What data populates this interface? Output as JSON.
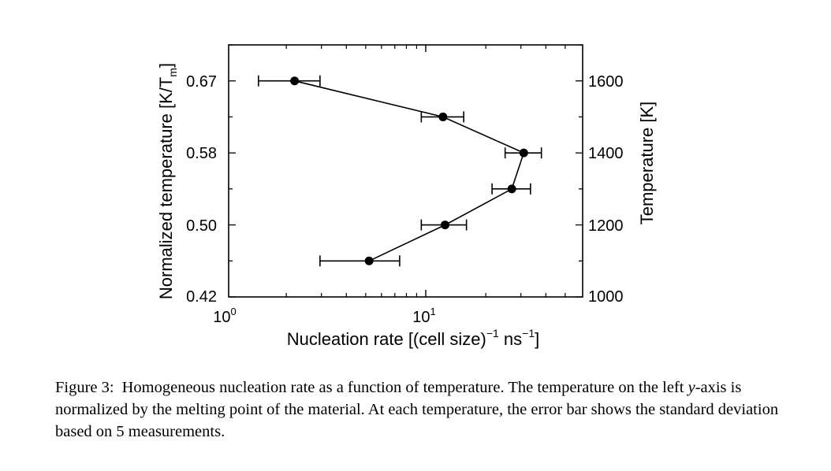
{
  "chart_data": {
    "type": "scatter",
    "xlabel": "Nucleation rate [(cell size)",
    "xlabel_sup1": "−1",
    "xlabel_mid": " ns",
    "xlabel_sup2": "−1",
    "xlabel_end": "]",
    "x_scale": "log",
    "xlim": [
      1,
      55
    ],
    "x_tick_labels": [
      {
        "base": "10",
        "exp": "0",
        "value": 1
      },
      {
        "base": "10",
        "exp": "1",
        "value": 10
      }
    ],
    "ylabel_left": "Normalized temperature [K/T",
    "ylabel_left_sub": "m",
    "ylabel_left_end": "]",
    "ylim_left": [
      0.42,
      0.7
    ],
    "y_left_ticks": [
      "0.42",
      "0.50",
      "0.58",
      "0.67"
    ],
    "ylabel_right": "Temperature [K]",
    "ylim_right": [
      1000,
      1700
    ],
    "y_right_ticks": [
      "1000",
      "1200",
      "1400",
      "1600"
    ],
    "series": [
      {
        "points": [
          {
            "temperature": 1600,
            "rate": 2.2,
            "err_low": 1.45,
            "err_high": 2.95
          },
          {
            "temperature": 1500,
            "rate": 12.2,
            "err_low": 9.5,
            "err_high": 15.5
          },
          {
            "temperature": 1400,
            "rate": 31.0,
            "err_low": 25.0,
            "err_high": 38.0
          },
          {
            "temperature": 1300,
            "rate": 27.0,
            "err_low": 21.5,
            "err_high": 33.5
          },
          {
            "temperature": 1200,
            "rate": 12.5,
            "err_low": 9.5,
            "err_high": 16.0
          },
          {
            "temperature": 1100,
            "rate": 5.2,
            "err_low": 2.95,
            "err_high": 7.4
          }
        ]
      }
    ]
  },
  "caption": {
    "label": "Figure 3:",
    "text_before_var": "Homogeneous nucleation rate as a function of temperature. The temperature on the left ",
    "var": "y",
    "text_after_var": "-axis is normalized by the melting point of the material. At each temperature, the error bar shows the standard deviation based on 5 measurements."
  }
}
